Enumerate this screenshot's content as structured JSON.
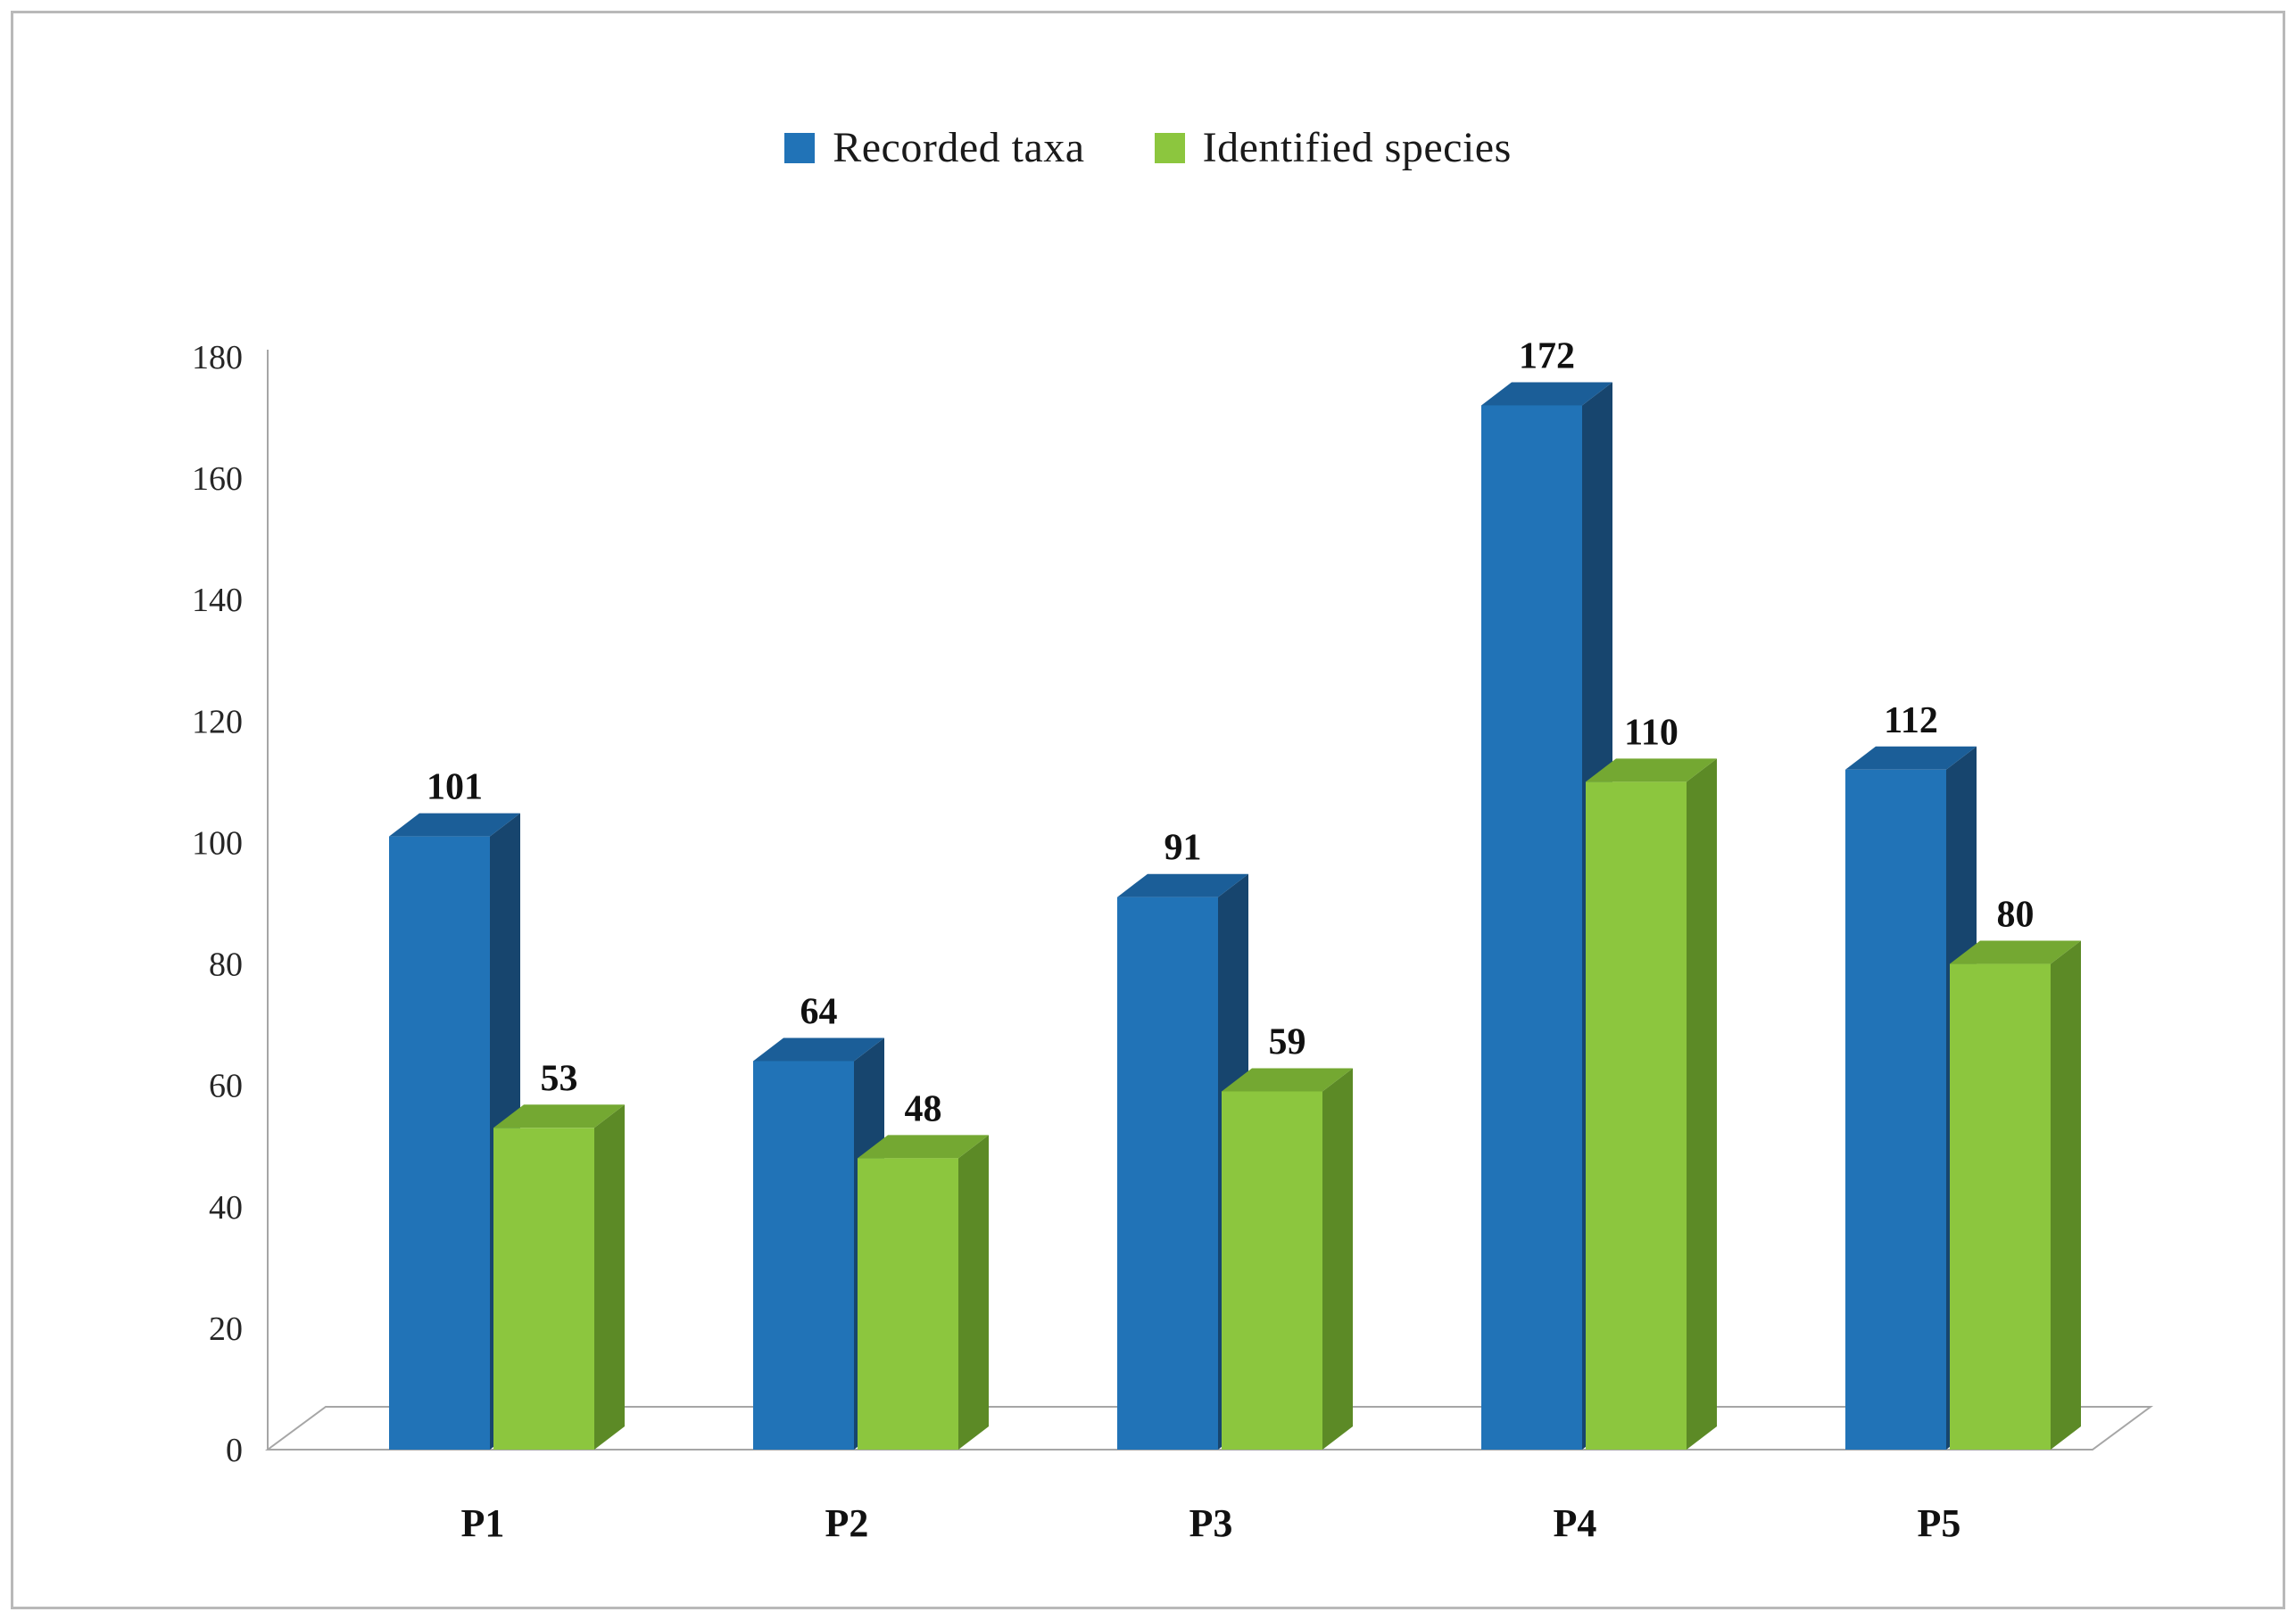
{
  "page": {
    "background": "#ffffff",
    "frame_border_color": "#b9b9b9"
  },
  "legend": {
    "items": [
      {
        "label": "Recorded taxa",
        "color": "#2173B7"
      },
      {
        "label": "Identified species",
        "color": "#8CC63E"
      }
    ]
  },
  "chart_data": {
    "type": "bar",
    "style": "3d-clustered-column",
    "title": "",
    "xlabel": "",
    "ylabel": "",
    "categories": [
      "P1",
      "P2",
      "P3",
      "P4",
      "P5"
    ],
    "series": [
      {
        "name": "Recorded taxa",
        "color": "#2173B7",
        "color_top": "#1B5E98",
        "color_side": "#17456E",
        "values": [
          101,
          64,
          91,
          172,
          112
        ]
      },
      {
        "name": "Identified species",
        "color": "#8CC63E",
        "color_top": "#74A832",
        "color_side": "#5C8A26",
        "values": [
          53,
          48,
          59,
          110,
          80
        ]
      }
    ],
    "ylim": [
      0,
      180
    ],
    "ytick_step": 20,
    "yticks": [
      "0",
      "20",
      "40",
      "60",
      "80",
      "100",
      "120",
      "140",
      "160",
      "180"
    ],
    "grid": false,
    "data_labels": true,
    "legend_position": "top",
    "axis_color": "#A6A6A6"
  }
}
